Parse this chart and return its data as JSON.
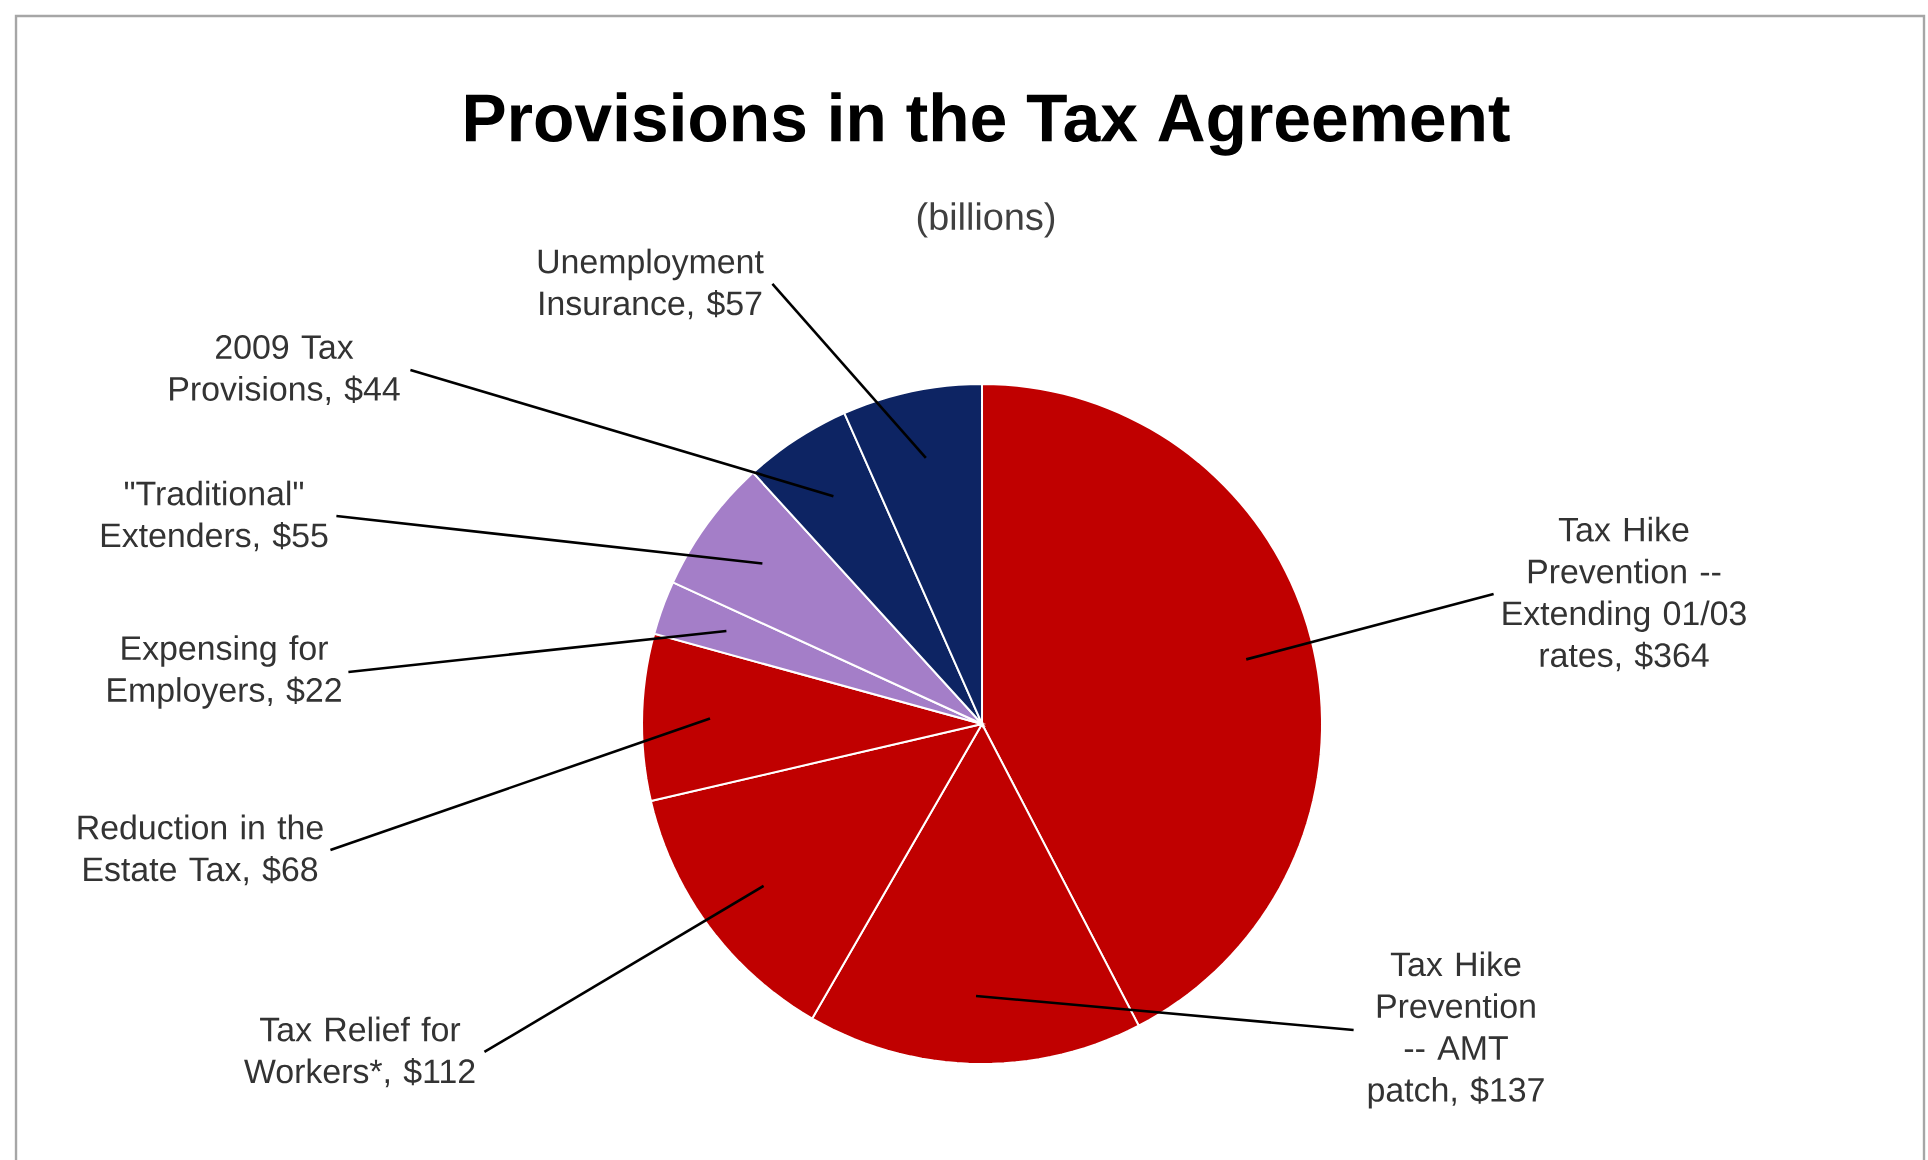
{
  "chart_data": {
    "type": "pie",
    "title": "Provisions in the Tax Agreement",
    "subtitle": "(billions)",
    "categories": [
      "Tax Hike Prevention -- Extending 01/03 rates, $364",
      "Tax Hike Prevention -- AMT patch, $137",
      "Tax Relief for Workers*, $112",
      "Reduction in the Estate Tax, $68",
      "Expensing for Employers, $22",
      "\"Traditional\" Extenders, $55",
      "2009 Tax Provisions, $44",
      "Unemployment Insurance, $57"
    ],
    "values": [
      364,
      137,
      112,
      68,
      22,
      55,
      44,
      57
    ],
    "colors": [
      "#c00000",
      "#c00000",
      "#c00000",
      "#c00000",
      "#a47ec8",
      "#a47ec8",
      "#0d2463",
      "#0d2463"
    ]
  }
}
